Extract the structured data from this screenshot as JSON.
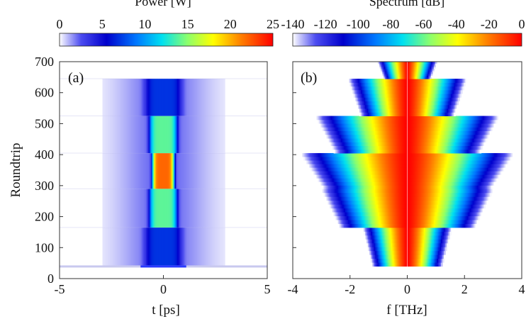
{
  "chart_data": [
    {
      "type": "heatmap",
      "panel_label": "(a)",
      "xlabel": "t [ps]",
      "ylabel": "Roundtrip",
      "xlim": [
        -5,
        5
      ],
      "ylim": [
        0,
        700
      ],
      "x_ticks": [
        "-5",
        "0",
        "5"
      ],
      "y_ticks": [
        "0",
        "100",
        "200",
        "300",
        "400",
        "500",
        "600",
        "700"
      ],
      "colorbar": {
        "title": "Power [W]",
        "range": [
          0,
          25
        ],
        "ticks": [
          "0",
          "5",
          "10",
          "15",
          "20",
          "25"
        ]
      },
      "segments": [
        {
          "roundtrips": [
            40,
            165
          ],
          "peak_power": 7,
          "width_ps": 0.9
        },
        {
          "roundtrips": [
            165,
            290
          ],
          "peak_power": 14,
          "width_ps": 0.7
        },
        {
          "roundtrips": [
            290,
            405
          ],
          "peak_power": 22,
          "width_ps": 0.55
        },
        {
          "roundtrips": [
            405,
            525
          ],
          "peak_power": 14,
          "width_ps": 0.7
        },
        {
          "roundtrips": [
            525,
            645
          ],
          "peak_power": 7,
          "width_ps": 0.9
        }
      ]
    },
    {
      "type": "heatmap",
      "panel_label": "(b)",
      "xlabel": "f [THz]",
      "ylabel": "",
      "xlim": [
        -4,
        4
      ],
      "ylim": [
        0,
        700
      ],
      "x_ticks": [
        "-4",
        "-2",
        "0",
        "2",
        "4"
      ],
      "y_ticks": [],
      "colorbar": {
        "title": "Spectrum [dB]",
        "range": [
          -140,
          0
        ],
        "ticks": [
          "-140",
          "-120",
          "-100",
          "-80",
          "-60",
          "-40",
          "-20",
          "0"
        ]
      },
      "segments": [
        {
          "roundtrips": [
            40,
            165
          ],
          "halfwidth_thz": 1.5
        },
        {
          "roundtrips": [
            165,
            290
          ],
          "halfwidth_thz": 2.9
        },
        {
          "roundtrips": [
            290,
            405
          ],
          "halfwidth_thz": 3.6
        },
        {
          "roundtrips": [
            405,
            525
          ],
          "halfwidth_thz": 3.1
        },
        {
          "roundtrips": [
            525,
            645
          ],
          "halfwidth_thz": 2.0
        },
        {
          "roundtrips": [
            645,
            700
          ],
          "halfwidth_thz": 1.0
        }
      ]
    }
  ]
}
